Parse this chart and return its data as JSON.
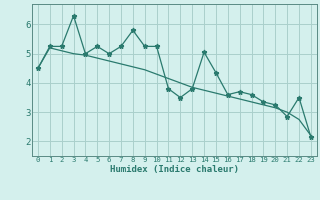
{
  "xlabel": "Humidex (Indice chaleur)",
  "x": [
    0,
    1,
    2,
    3,
    4,
    5,
    6,
    7,
    8,
    9,
    10,
    11,
    12,
    13,
    14,
    15,
    16,
    17,
    18,
    19,
    20,
    21,
    22,
    23
  ],
  "y_line": [
    4.5,
    5.25,
    5.25,
    6.3,
    5.0,
    5.25,
    5.0,
    5.25,
    5.8,
    5.25,
    5.25,
    3.8,
    3.5,
    3.8,
    5.05,
    4.35,
    3.6,
    3.7,
    3.6,
    3.35,
    3.25,
    2.85,
    3.5,
    2.15
  ],
  "y_smooth": [
    4.5,
    5.2,
    5.1,
    5.0,
    4.95,
    4.85,
    4.75,
    4.65,
    4.55,
    4.45,
    4.3,
    4.15,
    4.0,
    3.85,
    3.75,
    3.65,
    3.55,
    3.45,
    3.35,
    3.25,
    3.15,
    3.0,
    2.75,
    2.2
  ],
  "line_color": "#2a7a6e",
  "bg_color": "#d4f0ed",
  "grid_color": "#aacfcb",
  "axis_color": "#5a8a84",
  "ylim": [
    1.5,
    6.7
  ],
  "xlim": [
    -0.5,
    23.5
  ],
  "yticks": [
    2,
    3,
    4,
    5,
    6
  ],
  "xticks": [
    0,
    1,
    2,
    3,
    4,
    5,
    6,
    7,
    8,
    9,
    10,
    11,
    12,
    13,
    14,
    15,
    16,
    17,
    18,
    19,
    20,
    21,
    22,
    23
  ]
}
